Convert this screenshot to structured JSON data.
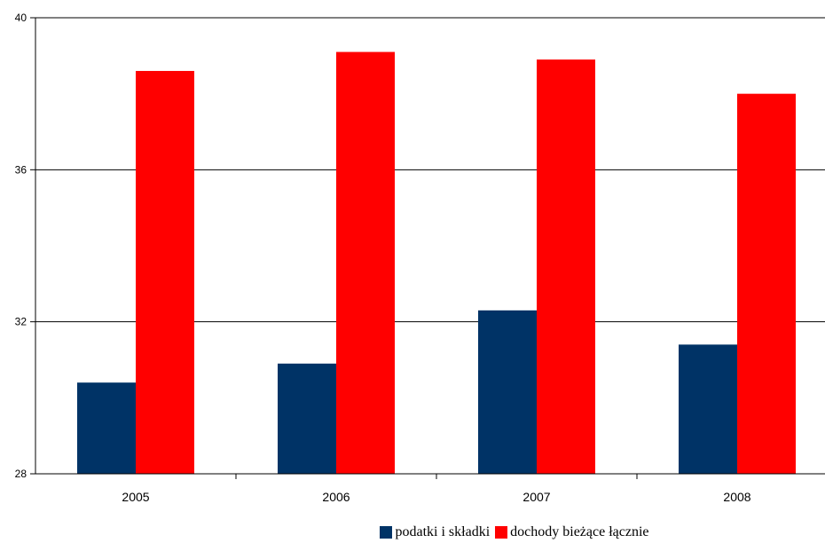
{
  "chart_data": {
    "type": "bar",
    "title": "",
    "xlabel": "",
    "ylabel": "",
    "categories": [
      "2005",
      "2006",
      "2007",
      "2008"
    ],
    "series": [
      {
        "name": "podatki i składki",
        "color": "#003366",
        "values": [
          30.4,
          30.9,
          32.3,
          31.4
        ]
      },
      {
        "name": "dochody bieżące łącznie",
        "color": "#ff0000",
        "values": [
          38.6,
          39.1,
          38.9,
          38.0
        ]
      }
    ],
    "ylim": [
      28,
      40
    ],
    "yticks": [
      "28",
      "32",
      "36",
      "40"
    ],
    "grid": true,
    "legend": "bottom"
  }
}
